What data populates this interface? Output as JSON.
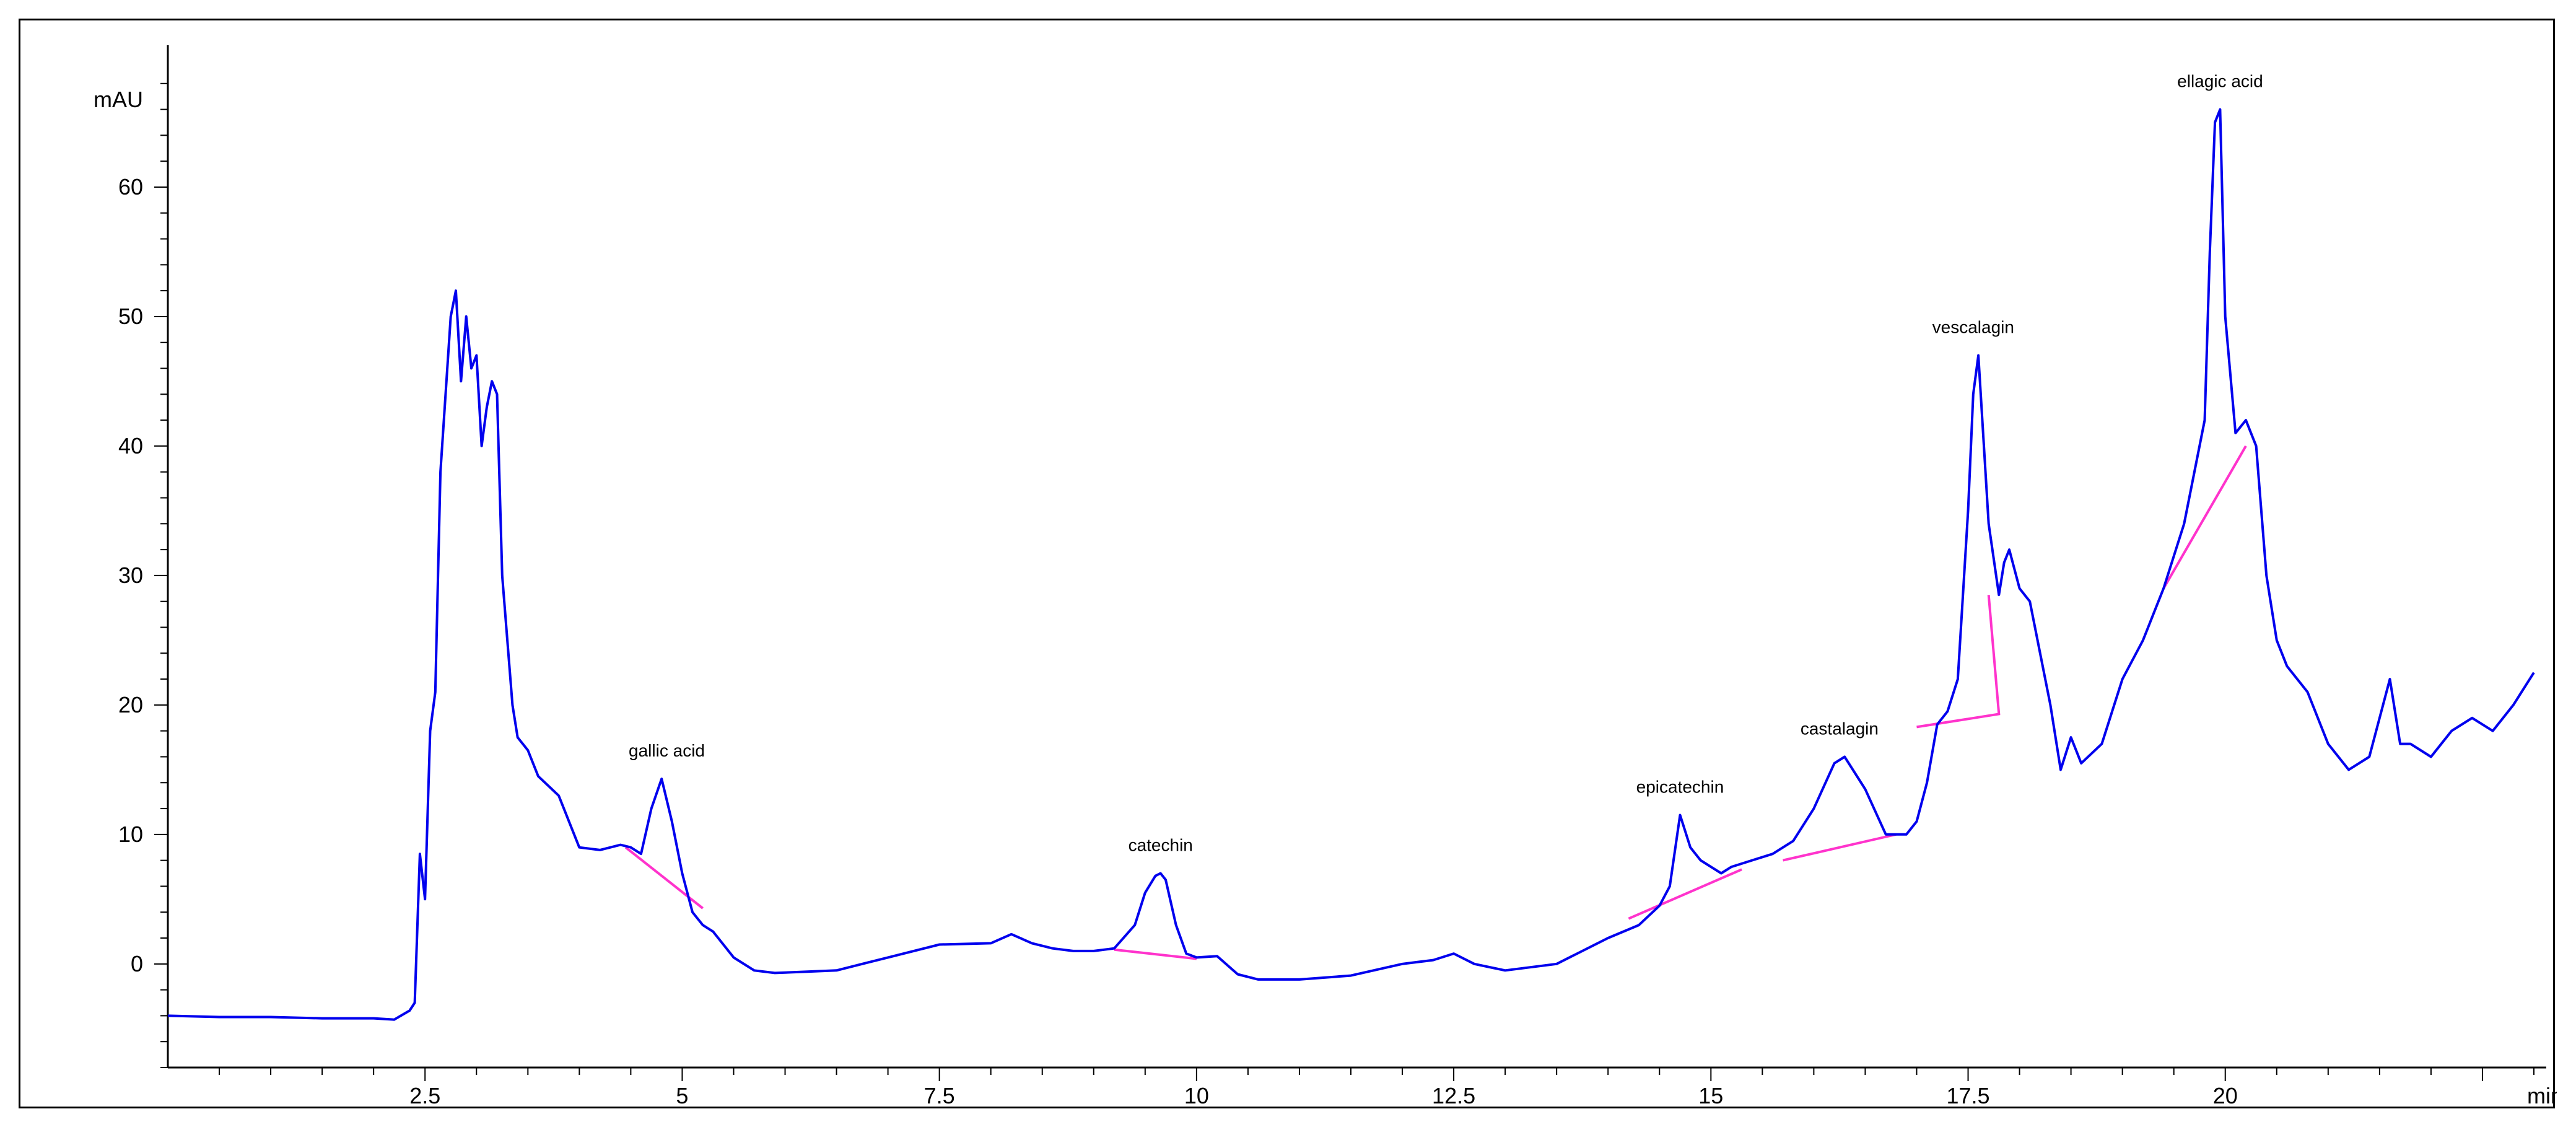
{
  "chart_data": {
    "type": "line",
    "title": "",
    "xlabel": "min",
    "ylabel": "mAU",
    "xlim": [
      0,
      23.0
    ],
    "ylim": [
      -8,
      70
    ],
    "x_ticks": [
      2.5,
      5,
      7.5,
      10,
      12.5,
      15,
      17.5,
      20
    ],
    "x_tick_labels": [
      "2.5",
      "5",
      "7.5",
      "10",
      "12.5",
      "15",
      "17.5",
      "20"
    ],
    "y_ticks": [
      0,
      10,
      20,
      30,
      40,
      50,
      60
    ],
    "y_tick_labels": [
      "0",
      "10",
      "20",
      "30",
      "40",
      "50",
      "60"
    ],
    "grid": false,
    "colors": {
      "trace": "#0000ee",
      "baseline": "#ff33cc",
      "axis": "#000000"
    },
    "series": [
      {
        "values_x": [
          0,
          0.5,
          1.0,
          1.5,
          2.0,
          2.2,
          2.35,
          2.4,
          2.45,
          2.5,
          2.55,
          2.6,
          2.65,
          2.7,
          2.75,
          2.8,
          2.85,
          2.9,
          2.95,
          3.0,
          3.05,
          3.1,
          3.15,
          3.2,
          3.25,
          3.3,
          3.35,
          3.4,
          3.5,
          3.6,
          3.8,
          4.0,
          4.2,
          4.4,
          4.5,
          4.6,
          4.7,
          4.8,
          4.9,
          5.0,
          5.1,
          5.2,
          5.3,
          5.5,
          5.7,
          5.9,
          6.2,
          6.5,
          7.0,
          7.5,
          8.0,
          8.2,
          8.4,
          8.6,
          8.8,
          9.0,
          9.2,
          9.4,
          9.5,
          9.6,
          9.65,
          9.7,
          9.8,
          9.9,
          10.0,
          10.2,
          10.4,
          10.6,
          10.8,
          11.0,
          11.5,
          12.0,
          12.3,
          12.5,
          12.7,
          13.0,
          13.5,
          14.0,
          14.3,
          14.5,
          14.6,
          14.7,
          14.8,
          14.9,
          15.0,
          15.1,
          15.2,
          15.4,
          15.6,
          15.8,
          16.0,
          16.2,
          16.3,
          16.5,
          16.7,
          16.9,
          17.0,
          17.1,
          17.2,
          17.3,
          17.4,
          17.5,
          17.55,
          17.6,
          17.7,
          17.8,
          17.85,
          17.9,
          18.0,
          18.1,
          18.2,
          18.3,
          18.4,
          18.5,
          18.6,
          18.8,
          19.0,
          19.2,
          19.4,
          19.6,
          19.7,
          19.8,
          19.85,
          19.9,
          19.95,
          20.0,
          20.1,
          20.2,
          20.3,
          20.4,
          20.5,
          20.6,
          20.8,
          21.0,
          21.2,
          21.4,
          21.5,
          21.6,
          21.7,
          21.8,
          22.0,
          22.2,
          22.4,
          22.6,
          22.8,
          23.0
        ],
        "values_y": [
          -4.0,
          -4.1,
          -4.1,
          -4.2,
          -4.2,
          -4.3,
          -3.6,
          -3.0,
          8.5,
          5.0,
          18.0,
          21.0,
          38.0,
          44.0,
          50.0,
          52.0,
          45.0,
          50.0,
          46.0,
          47.0,
          40.0,
          43.0,
          45.0,
          44.0,
          30.0,
          25.0,
          20.0,
          17.5,
          16.5,
          14.5,
          13.0,
          9.0,
          8.8,
          9.2,
          9.0,
          8.5,
          12.0,
          14.3,
          11.0,
          7.0,
          4.0,
          3.0,
          2.5,
          0.5,
          -0.5,
          -0.7,
          -0.6,
          -0.5,
          0.5,
          1.5,
          1.6,
          2.3,
          1.6,
          1.2,
          1.0,
          1.0,
          1.2,
          3.0,
          5.5,
          6.8,
          7.0,
          6.5,
          3.0,
          0.8,
          0.5,
          0.6,
          -0.8,
          -1.2,
          -1.2,
          -1.2,
          -0.9,
          0.0,
          0.3,
          0.8,
          0.0,
          -0.5,
          0.0,
          2.0,
          3.0,
          4.5,
          6.0,
          11.5,
          9.0,
          8.0,
          7.5,
          7.0,
          7.5,
          8.0,
          8.5,
          9.5,
          12.0,
          15.5,
          16.0,
          13.5,
          10.0,
          10.0,
          11.0,
          14.0,
          18.5,
          19.5,
          22.0,
          35.0,
          44.0,
          47.0,
          34.0,
          28.5,
          31.0,
          32.0,
          29.0,
          28.0,
          24.0,
          20.0,
          15.0,
          17.5,
          15.5,
          17.0,
          22.0,
          25.0,
          29.0,
          34.0,
          38.0,
          42.0,
          55.0,
          65.0,
          66.0,
          50.0,
          41.0,
          42.0,
          40.0,
          30.0,
          25.0,
          23.0,
          21.0,
          17.0,
          15.0,
          16.0,
          19.0,
          22.0,
          17.0,
          17.0,
          16.0,
          18.0,
          19.0,
          18.0,
          20.0,
          22.5
        ]
      }
    ],
    "peaks": [
      {
        "label": "gallic acid",
        "x": 4.85,
        "y": 14.3,
        "baseline": [
          [
            4.45,
            9.0
          ],
          [
            5.2,
            4.3
          ]
        ]
      },
      {
        "label": "catechin",
        "x": 9.65,
        "y": 7.0,
        "baseline": [
          [
            9.2,
            1.1
          ],
          [
            10.0,
            0.4
          ]
        ]
      },
      {
        "label": "epicatechin",
        "x": 14.7,
        "y": 11.5,
        "baseline": [
          [
            14.2,
            3.5
          ],
          [
            15.3,
            7.3
          ]
        ]
      },
      {
        "label": "castalagin",
        "x": 16.25,
        "y": 16.0,
        "baseline": [
          [
            15.7,
            8.0
          ],
          [
            16.8,
            10.0
          ]
        ]
      },
      {
        "label": "vescalagin",
        "x": 17.55,
        "y": 47.0,
        "baseline": [
          [
            17.0,
            18.3
          ],
          [
            17.8,
            19.3
          ],
          [
            17.7,
            28.5
          ]
        ]
      },
      {
        "label": "ellagic acid",
        "x": 19.95,
        "y": 66.0,
        "baseline": [
          [
            19.4,
            29.0
          ],
          [
            20.2,
            40.0
          ]
        ]
      }
    ]
  }
}
